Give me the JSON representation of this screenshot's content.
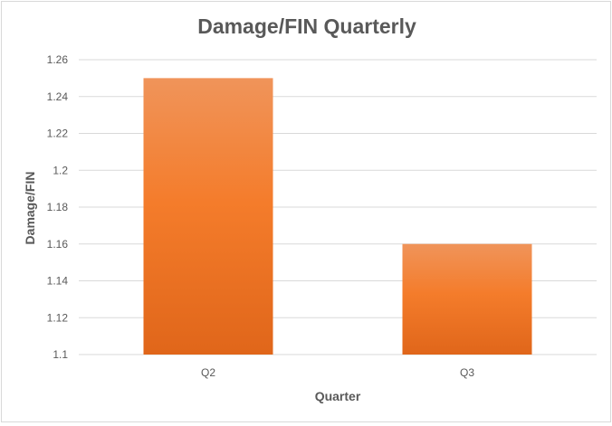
{
  "chart_data": {
    "type": "bar",
    "title": "Damage/FIN Quarterly",
    "xlabel": "Quarter",
    "ylabel": "Damage/FIN",
    "categories": [
      "Q2",
      "Q3"
    ],
    "values": [
      1.25,
      1.16
    ],
    "ylim": [
      1.1,
      1.26
    ],
    "yticks": [
      "1.1",
      "1.12",
      "1.14",
      "1.16",
      "1.18",
      "1.2",
      "1.22",
      "1.24",
      "1.26"
    ],
    "grid": true,
    "legend": "none",
    "colors": {
      "bar_top": "#f0945a",
      "bar_mid": "#f47c2b",
      "bar_bottom": "#e0661a",
      "gridline": "#d9d9d9",
      "text": "#595959"
    }
  }
}
